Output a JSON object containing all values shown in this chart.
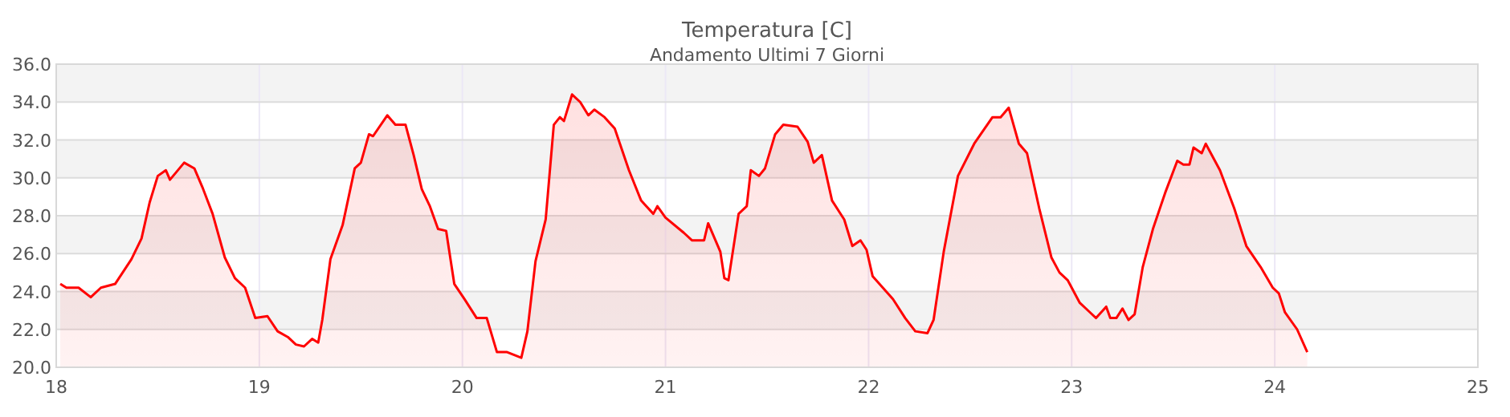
{
  "chart_data": {
    "type": "area",
    "title": "Temperatura [C]",
    "subtitle": "Andamento Ultimi 7 Giorni",
    "x": [
      18.02,
      18.05,
      18.11,
      18.17,
      18.22,
      18.29,
      18.37,
      18.42,
      18.46,
      18.5,
      18.54,
      18.56,
      18.63,
      18.68,
      18.72,
      18.77,
      18.83,
      18.88,
      18.93,
      18.98,
      19.04,
      19.09,
      19.14,
      19.18,
      19.22,
      19.26,
      19.29,
      19.31,
      19.35,
      19.41,
      19.47,
      19.5,
      19.54,
      19.56,
      19.63,
      19.67,
      19.72,
      19.76,
      19.8,
      19.84,
      19.88,
      19.92,
      19.96,
      20.01,
      20.07,
      20.12,
      20.17,
      20.22,
      20.29,
      20.32,
      20.36,
      20.41,
      20.45,
      20.48,
      20.5,
      20.54,
      20.58,
      20.62,
      20.65,
      20.7,
      20.75,
      20.82,
      20.88,
      20.94,
      20.96,
      21.0,
      21.09,
      21.13,
      21.19,
      21.21,
      21.27,
      21.29,
      21.31,
      21.36,
      21.4,
      21.42,
      21.46,
      21.49,
      21.54,
      21.58,
      21.65,
      21.7,
      21.73,
      21.77,
      21.82,
      21.88,
      21.92,
      21.96,
      21.99,
      22.02,
      22.12,
      22.18,
      22.23,
      22.29,
      22.32,
      22.37,
      22.44,
      22.52,
      22.61,
      22.65,
      22.69,
      22.74,
      22.78,
      22.84,
      22.9,
      22.94,
      22.98,
      23.04,
      23.09,
      23.12,
      23.17,
      23.19,
      23.22,
      23.25,
      23.28,
      23.31,
      23.35,
      23.4,
      23.46,
      23.52,
      23.55,
      23.58,
      23.6,
      23.64,
      23.66,
      23.73,
      23.8,
      23.86,
      23.93,
      23.99,
      24.02,
      24.05,
      24.11,
      24.16
    ],
    "series": [
      {
        "color": "#ff0000",
        "values": [
          24.4,
          24.2,
          24.2,
          23.7,
          24.2,
          24.4,
          25.7,
          26.8,
          28.7,
          30.1,
          30.4,
          29.9,
          30.8,
          30.5,
          29.5,
          28.1,
          25.8,
          24.7,
          24.2,
          22.6,
          22.7,
          21.9,
          21.6,
          21.2,
          21.1,
          21.5,
          21.3,
          22.5,
          25.7,
          27.5,
          30.5,
          30.8,
          32.3,
          32.2,
          33.3,
          32.8,
          32.8,
          31.2,
          29.4,
          28.5,
          27.3,
          27.2,
          24.4,
          23.6,
          22.6,
          22.6,
          20.8,
          20.8,
          20.5,
          21.9,
          25.6,
          27.8,
          32.8,
          33.2,
          33.0,
          34.4,
          34.0,
          33.3,
          33.6,
          33.2,
          32.6,
          30.4,
          28.8,
          28.1,
          28.5,
          27.9,
          27.1,
          26.7,
          26.7,
          27.6,
          26.1,
          24.7,
          24.6,
          28.1,
          28.5,
          30.4,
          30.1,
          30.5,
          32.3,
          32.8,
          32.7,
          31.9,
          30.8,
          31.2,
          28.8,
          27.8,
          26.4,
          26.7,
          26.2,
          24.8,
          23.6,
          22.6,
          21.9,
          21.8,
          22.5,
          26.1,
          30.1,
          31.8,
          33.2,
          33.2,
          33.7,
          31.8,
          31.3,
          28.4,
          25.8,
          25.0,
          24.6,
          23.4,
          22.9,
          22.6,
          23.2,
          22.6,
          22.6,
          23.1,
          22.5,
          22.8,
          25.3,
          27.3,
          29.2,
          30.9,
          30.7,
          30.7,
          31.6,
          31.3,
          31.8,
          30.4,
          28.4,
          26.4,
          25.3,
          24.2,
          23.9,
          22.9,
          22.0,
          20.8
        ]
      }
    ],
    "xlim": [
      18,
      25
    ],
    "xticks": [
      18,
      19,
      20,
      21,
      22,
      23,
      24,
      25
    ],
    "ylim": [
      20,
      36
    ],
    "yticks": [
      {
        "value": 20,
        "label": "20.0"
      },
      {
        "value": 22,
        "label": "22.0"
      },
      {
        "value": 24,
        "label": "24.0"
      },
      {
        "value": 26,
        "label": "26.0"
      },
      {
        "value": 28,
        "label": "28.0"
      },
      {
        "value": 30,
        "label": "30.0"
      },
      {
        "value": 32,
        "label": "32.0"
      },
      {
        "value": 34,
        "label": "34.0"
      },
      {
        "value": 36,
        "label": "36.0"
      }
    ],
    "grid": true
  }
}
